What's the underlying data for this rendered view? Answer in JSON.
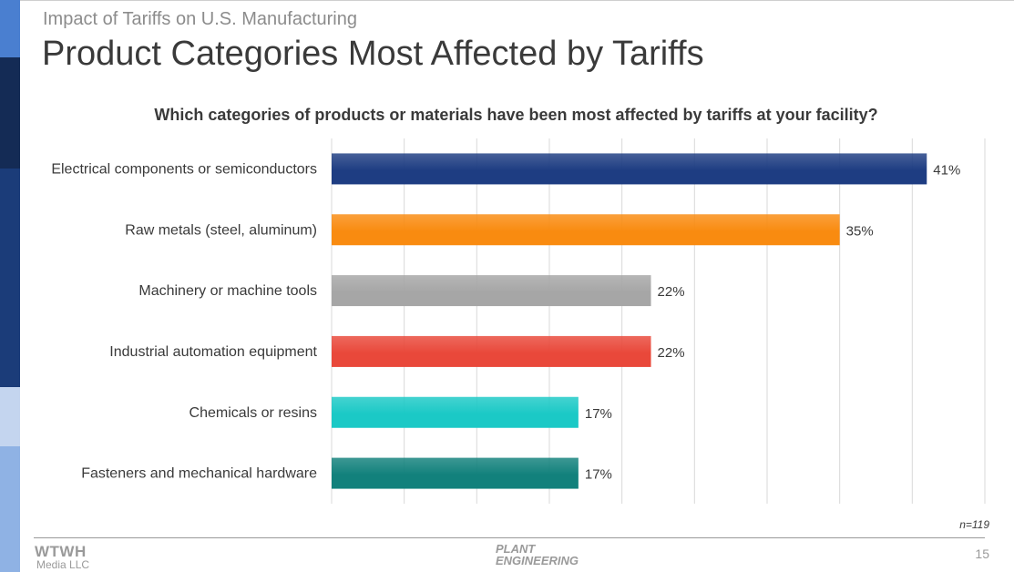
{
  "slide": {
    "subtitle": "Impact of Tariffs on U.S. Manufacturing",
    "title": "Product Categories Most Affected by Tariffs",
    "page_number": "15"
  },
  "sidebar_colors": [
    "#4a7fd0",
    "#142b55",
    "#1b3c79",
    "#c4d5ef",
    "#8fb2e4"
  ],
  "chart_data": {
    "type": "bar",
    "orientation": "horizontal",
    "title": "Which categories of products or materials have been most affected by tariffs at your facility?",
    "categories": [
      "Electrical components or semiconductors",
      "Raw metals (steel, aluminum)",
      "Machinery or machine tools",
      "Industrial automation equipment",
      "Chemicals or resins",
      "Fasteners and mechanical hardware"
    ],
    "values": [
      41,
      35,
      22,
      22,
      17,
      17
    ],
    "value_labels": [
      "41%",
      "35%",
      "22%",
      "22%",
      "17%",
      "17%"
    ],
    "colors": [
      "#1e3d82",
      "#f98b10",
      "#a6a6a6",
      "#e9483a",
      "#1bc9c6",
      "#12817c"
    ],
    "xlim": [
      0,
      45
    ],
    "grid_step": 5,
    "grid": true,
    "sample_size": "n=119"
  },
  "footer": {
    "logo_wtwh_top": "WTWH",
    "logo_wtwh_bottom": "Media LLC",
    "logo_pe_line1": "PLANT",
    "logo_pe_line2": "ENGINEERING"
  }
}
